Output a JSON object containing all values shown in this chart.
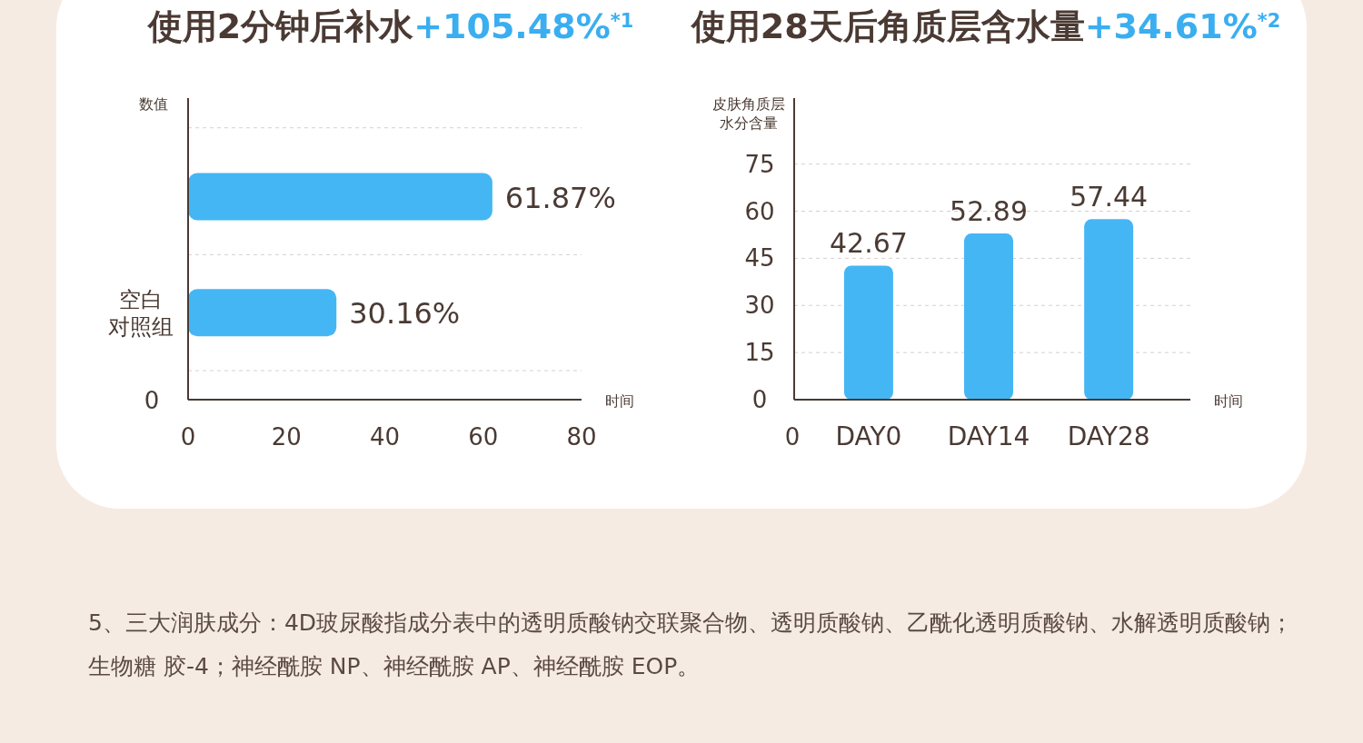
{
  "chart_data": [
    {
      "type": "bar",
      "orientation": "horizontal",
      "title": "使用2分钟后补水",
      "subtitle": "+105.48%$^{*1}$",
      "ylabel": "数值",
      "xlabel": "时间",
      "categories": [
        null,
        "空白对照组"
      ],
      "series": [
        {
          "color": "#45b6f4",
          "values": [
            61.87,
            30.16
          ],
          "value_labels": [
            "61.87%",
            "30.16%"
          ]
        }
      ],
      "xlim": [
        0,
        80
      ],
      "xticks": [
        0,
        20,
        40,
        60,
        80
      ],
      "grid": "y",
      "annotations": [
        "0"
      ]
    },
    {
      "type": "bar",
      "title": "使用28天后角质层含水量",
      "subtitle": "+34.61%$^{*2}$",
      "ylabel": "皮肤角质层水分含量",
      "xlabel": "时间",
      "categories": [
        "DAY0",
        "DAY14",
        "DAY28"
      ],
      "series": [
        {
          "color": "#45b6f4",
          "values": [
            42.67,
            52.89,
            57.44
          ]
        }
      ],
      "data_labels": true,
      "ylim": [
        0,
        96
      ],
      "yticks": [
        0,
        15,
        30,
        45,
        60,
        75
      ],
      "grid": "y",
      "annotations": [
        "0",
        "5、三大润肤成分：4D玻尿酸指成分表中的透明质酸钠交联聚合物、透明质酸钠、乙酰化透明质酸钠、水解透明质酸钠；生物糖 胶-4；神经酰胺 NP、神经酰胺 AP、神经酰胺 EOP。"
      ]
    }
  ]
}
